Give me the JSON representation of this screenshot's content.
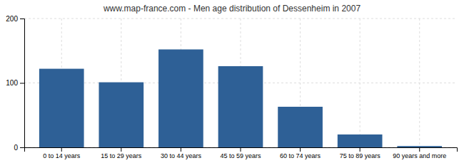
{
  "chart_data": {
    "type": "bar",
    "title": "www.map-france.com - Men age distribution of Dessenheim in 2007",
    "categories": [
      "0 to 14 years",
      "15 to 29 years",
      "30 to 44 years",
      "45 to 59 years",
      "60 to 74 years",
      "75 to 89 years",
      "90 years and more"
    ],
    "values": [
      122,
      101,
      152,
      126,
      63,
      20,
      2
    ],
    "color": "#2e6096",
    "ylim": [
      0,
      200
    ],
    "yticks": [
      0,
      100,
      200
    ],
    "grid": true
  }
}
